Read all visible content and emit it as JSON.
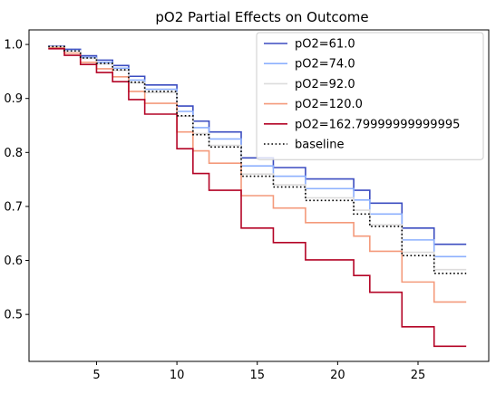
{
  "chart_data": {
    "type": "line",
    "subtype": "step-survival",
    "title": "pO2 Partial Effects on Outcome",
    "xlabel": "",
    "ylabel": "",
    "xlim": [
      0.8,
      29.4
    ],
    "ylim": [
      0.413,
      1.027
    ],
    "x_ticks": [
      5,
      10,
      15,
      20,
      25
    ],
    "y_ticks": [
      0.5,
      0.6,
      0.7,
      0.8,
      0.9,
      1.0
    ],
    "x_tick_labels": [
      "5",
      "10",
      "15",
      "20",
      "25"
    ],
    "y_tick_labels": [
      "0.5",
      "0.6",
      "0.7",
      "0.8",
      "0.9",
      "1.0"
    ],
    "legend_position": "upper-right",
    "grid": false,
    "x": [
      2,
      3,
      4,
      5,
      6,
      7,
      8,
      10,
      11,
      12,
      14,
      16,
      18,
      21,
      22,
      24,
      26,
      28
    ],
    "series": [
      {
        "name": "pO2=61.0",
        "color": "#3b4cc0",
        "style": "solid",
        "values": [
          0.997,
          0.991,
          0.979,
          0.971,
          0.961,
          0.941,
          0.925,
          0.886,
          0.858,
          0.838,
          0.79,
          0.772,
          0.751,
          0.73,
          0.706,
          0.66,
          0.63,
          0.63
        ]
      },
      {
        "name": "pO2=74.0",
        "color": "#8db0fe",
        "style": "solid",
        "values": [
          0.996,
          0.989,
          0.976,
          0.967,
          0.956,
          0.934,
          0.917,
          0.876,
          0.846,
          0.825,
          0.775,
          0.756,
          0.733,
          0.712,
          0.686,
          0.638,
          0.607,
          0.607
        ]
      },
      {
        "name": "pO2=92.0",
        "color": "#dddcdc",
        "style": "solid",
        "values": [
          0.996,
          0.988,
          0.974,
          0.964,
          0.952,
          0.929,
          0.911,
          0.867,
          0.835,
          0.813,
          0.76,
          0.74,
          0.716,
          0.693,
          0.666,
          0.615,
          0.583,
          0.583
        ]
      },
      {
        "name": "pO2=120.0",
        "color": "#f49a7b",
        "style": "solid",
        "values": [
          0.994,
          0.984,
          0.967,
          0.955,
          0.94,
          0.913,
          0.891,
          0.838,
          0.803,
          0.78,
          0.72,
          0.697,
          0.67,
          0.645,
          0.617,
          0.56,
          0.523,
          0.523
        ]
      },
      {
        "name": "pO2=162.79999999999995",
        "color": "#b40426",
        "style": "solid",
        "values": [
          0.992,
          0.98,
          0.963,
          0.948,
          0.931,
          0.898,
          0.871,
          0.807,
          0.761,
          0.73,
          0.66,
          0.633,
          0.601,
          0.572,
          0.541,
          0.477,
          0.441,
          0.441
        ]
      },
      {
        "name": "baseline",
        "color": "#000000",
        "style": "dotted",
        "values": [
          0.996,
          0.988,
          0.975,
          0.965,
          0.953,
          0.93,
          0.913,
          0.868,
          0.833,
          0.81,
          0.756,
          0.736,
          0.711,
          0.686,
          0.663,
          0.609,
          0.576,
          0.576
        ]
      }
    ]
  }
}
